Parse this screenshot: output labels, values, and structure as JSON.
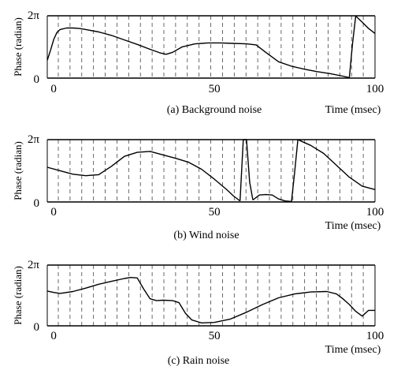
{
  "chart_data": [
    {
      "type": "line",
      "caption": "(a) Background noise",
      "xlabel": "Time (msec)",
      "ylabel": "Phase (radian)",
      "xlim": [
        -2,
        100
      ],
      "ylim": [
        0,
        6.2832
      ],
      "x_ticks": [
        {
          "value": 0,
          "label": "0"
        },
        {
          "value": 50,
          "label": "50"
        },
        {
          "value": 100,
          "label": "100"
        }
      ],
      "y_ticks": [
        {
          "value": 0,
          "label": "0"
        },
        {
          "value": 6.2832,
          "label": "2π"
        }
      ],
      "grid": "dashed-vertical",
      "series": [
        {
          "x": [
            -2,
            -1,
            0,
            1,
            2,
            4,
            6,
            8,
            10,
            14,
            18,
            22,
            26,
            30,
            33,
            35,
            37,
            40,
            44,
            48,
            52,
            56,
            60,
            63,
            66,
            70,
            74,
            78,
            82,
            86,
            90,
            92
          ],
          "y": [
            1.8,
            2.8,
            3.9,
            4.6,
            4.9,
            5.05,
            5.05,
            5.0,
            4.9,
            4.65,
            4.3,
            3.85,
            3.4,
            2.9,
            2.55,
            2.4,
            2.6,
            3.15,
            3.45,
            3.55,
            3.55,
            3.5,
            3.45,
            3.35,
            2.6,
            1.65,
            1.2,
            0.9,
            0.65,
            0.45,
            0.2,
            0.05
          ]
        },
        {
          "x": [
            92,
            93,
            94
          ],
          "y": [
            0.05,
            3.5,
            6.25
          ]
        },
        {
          "x": [
            94,
            96,
            98,
            100
          ],
          "y": [
            6.25,
            5.65,
            5.0,
            4.5
          ]
        }
      ]
    },
    {
      "type": "line",
      "caption": "(b) Wind noise",
      "xlabel": "Time (msec)",
      "ylabel": "Phase (radian)",
      "xlim": [
        -2,
        100
      ],
      "ylim": [
        0,
        6.2832
      ],
      "x_ticks": [
        {
          "value": 0,
          "label": "0"
        },
        {
          "value": 50,
          "label": "50"
        },
        {
          "value": 100,
          "label": "100"
        }
      ],
      "y_ticks": [
        {
          "value": 0,
          "label": "0"
        },
        {
          "value": 6.2832,
          "label": "2π"
        }
      ],
      "grid": "dashed-vertical",
      "series": [
        {
          "x": [
            -2,
            2,
            6,
            10,
            14,
            18,
            22,
            26,
            30,
            34,
            38,
            42,
            46,
            50,
            54,
            56,
            58
          ],
          "y": [
            3.5,
            3.15,
            2.8,
            2.65,
            2.75,
            3.6,
            4.6,
            5.0,
            5.1,
            4.75,
            4.4,
            4.0,
            3.3,
            2.3,
            1.2,
            0.6,
            0.1
          ]
        },
        {
          "x": [
            58,
            59,
            60,
            61,
            62
          ],
          "y": [
            0.1,
            6.28,
            6.28,
            2.0,
            0.2
          ]
        },
        {
          "x": [
            62,
            64,
            66,
            68,
            70,
            72,
            74
          ],
          "y": [
            0.2,
            0.7,
            0.75,
            0.7,
            0.3,
            0.1,
            0.05
          ]
        },
        {
          "x": [
            74,
            75,
            76
          ],
          "y": [
            0.05,
            3.0,
            6.28
          ]
        },
        {
          "x": [
            76,
            80,
            84,
            88,
            92,
            96,
            100
          ],
          "y": [
            6.28,
            5.7,
            4.9,
            3.7,
            2.5,
            1.6,
            1.25
          ]
        }
      ]
    },
    {
      "type": "line",
      "caption": "(c) Rain noise",
      "xlabel": "Time (msec)",
      "ylabel": "Phase (radian)",
      "xlim": [
        -2,
        100
      ],
      "ylim": [
        0,
        6.2832
      ],
      "x_ticks": [
        {
          "value": 0,
          "label": "0"
        },
        {
          "value": 50,
          "label": "50"
        },
        {
          "value": 100,
          "label": "100"
        }
      ],
      "y_ticks": [
        {
          "value": 0,
          "label": "0"
        },
        {
          "value": 6.2832,
          "label": "2π"
        }
      ],
      "grid": "dashed-vertical",
      "series": [
        {
          "x": [
            -2,
            0,
            2,
            6,
            10,
            14,
            18,
            22,
            24,
            26,
            28,
            30,
            32,
            34,
            37,
            39,
            41,
            43,
            46,
            50,
            55,
            60,
            65,
            70,
            75,
            80,
            85,
            88,
            90,
            92,
            94,
            96,
            98,
            100
          ],
          "y": [
            3.6,
            3.45,
            3.35,
            3.55,
            3.9,
            4.3,
            4.6,
            4.9,
            5.0,
            4.95,
            3.8,
            2.8,
            2.6,
            2.65,
            2.6,
            2.4,
            1.3,
            0.6,
            0.3,
            0.35,
            0.7,
            1.4,
            2.2,
            2.9,
            3.3,
            3.5,
            3.55,
            3.3,
            2.8,
            2.2,
            1.5,
            1.0,
            1.6,
            1.6
          ]
        }
      ]
    }
  ]
}
